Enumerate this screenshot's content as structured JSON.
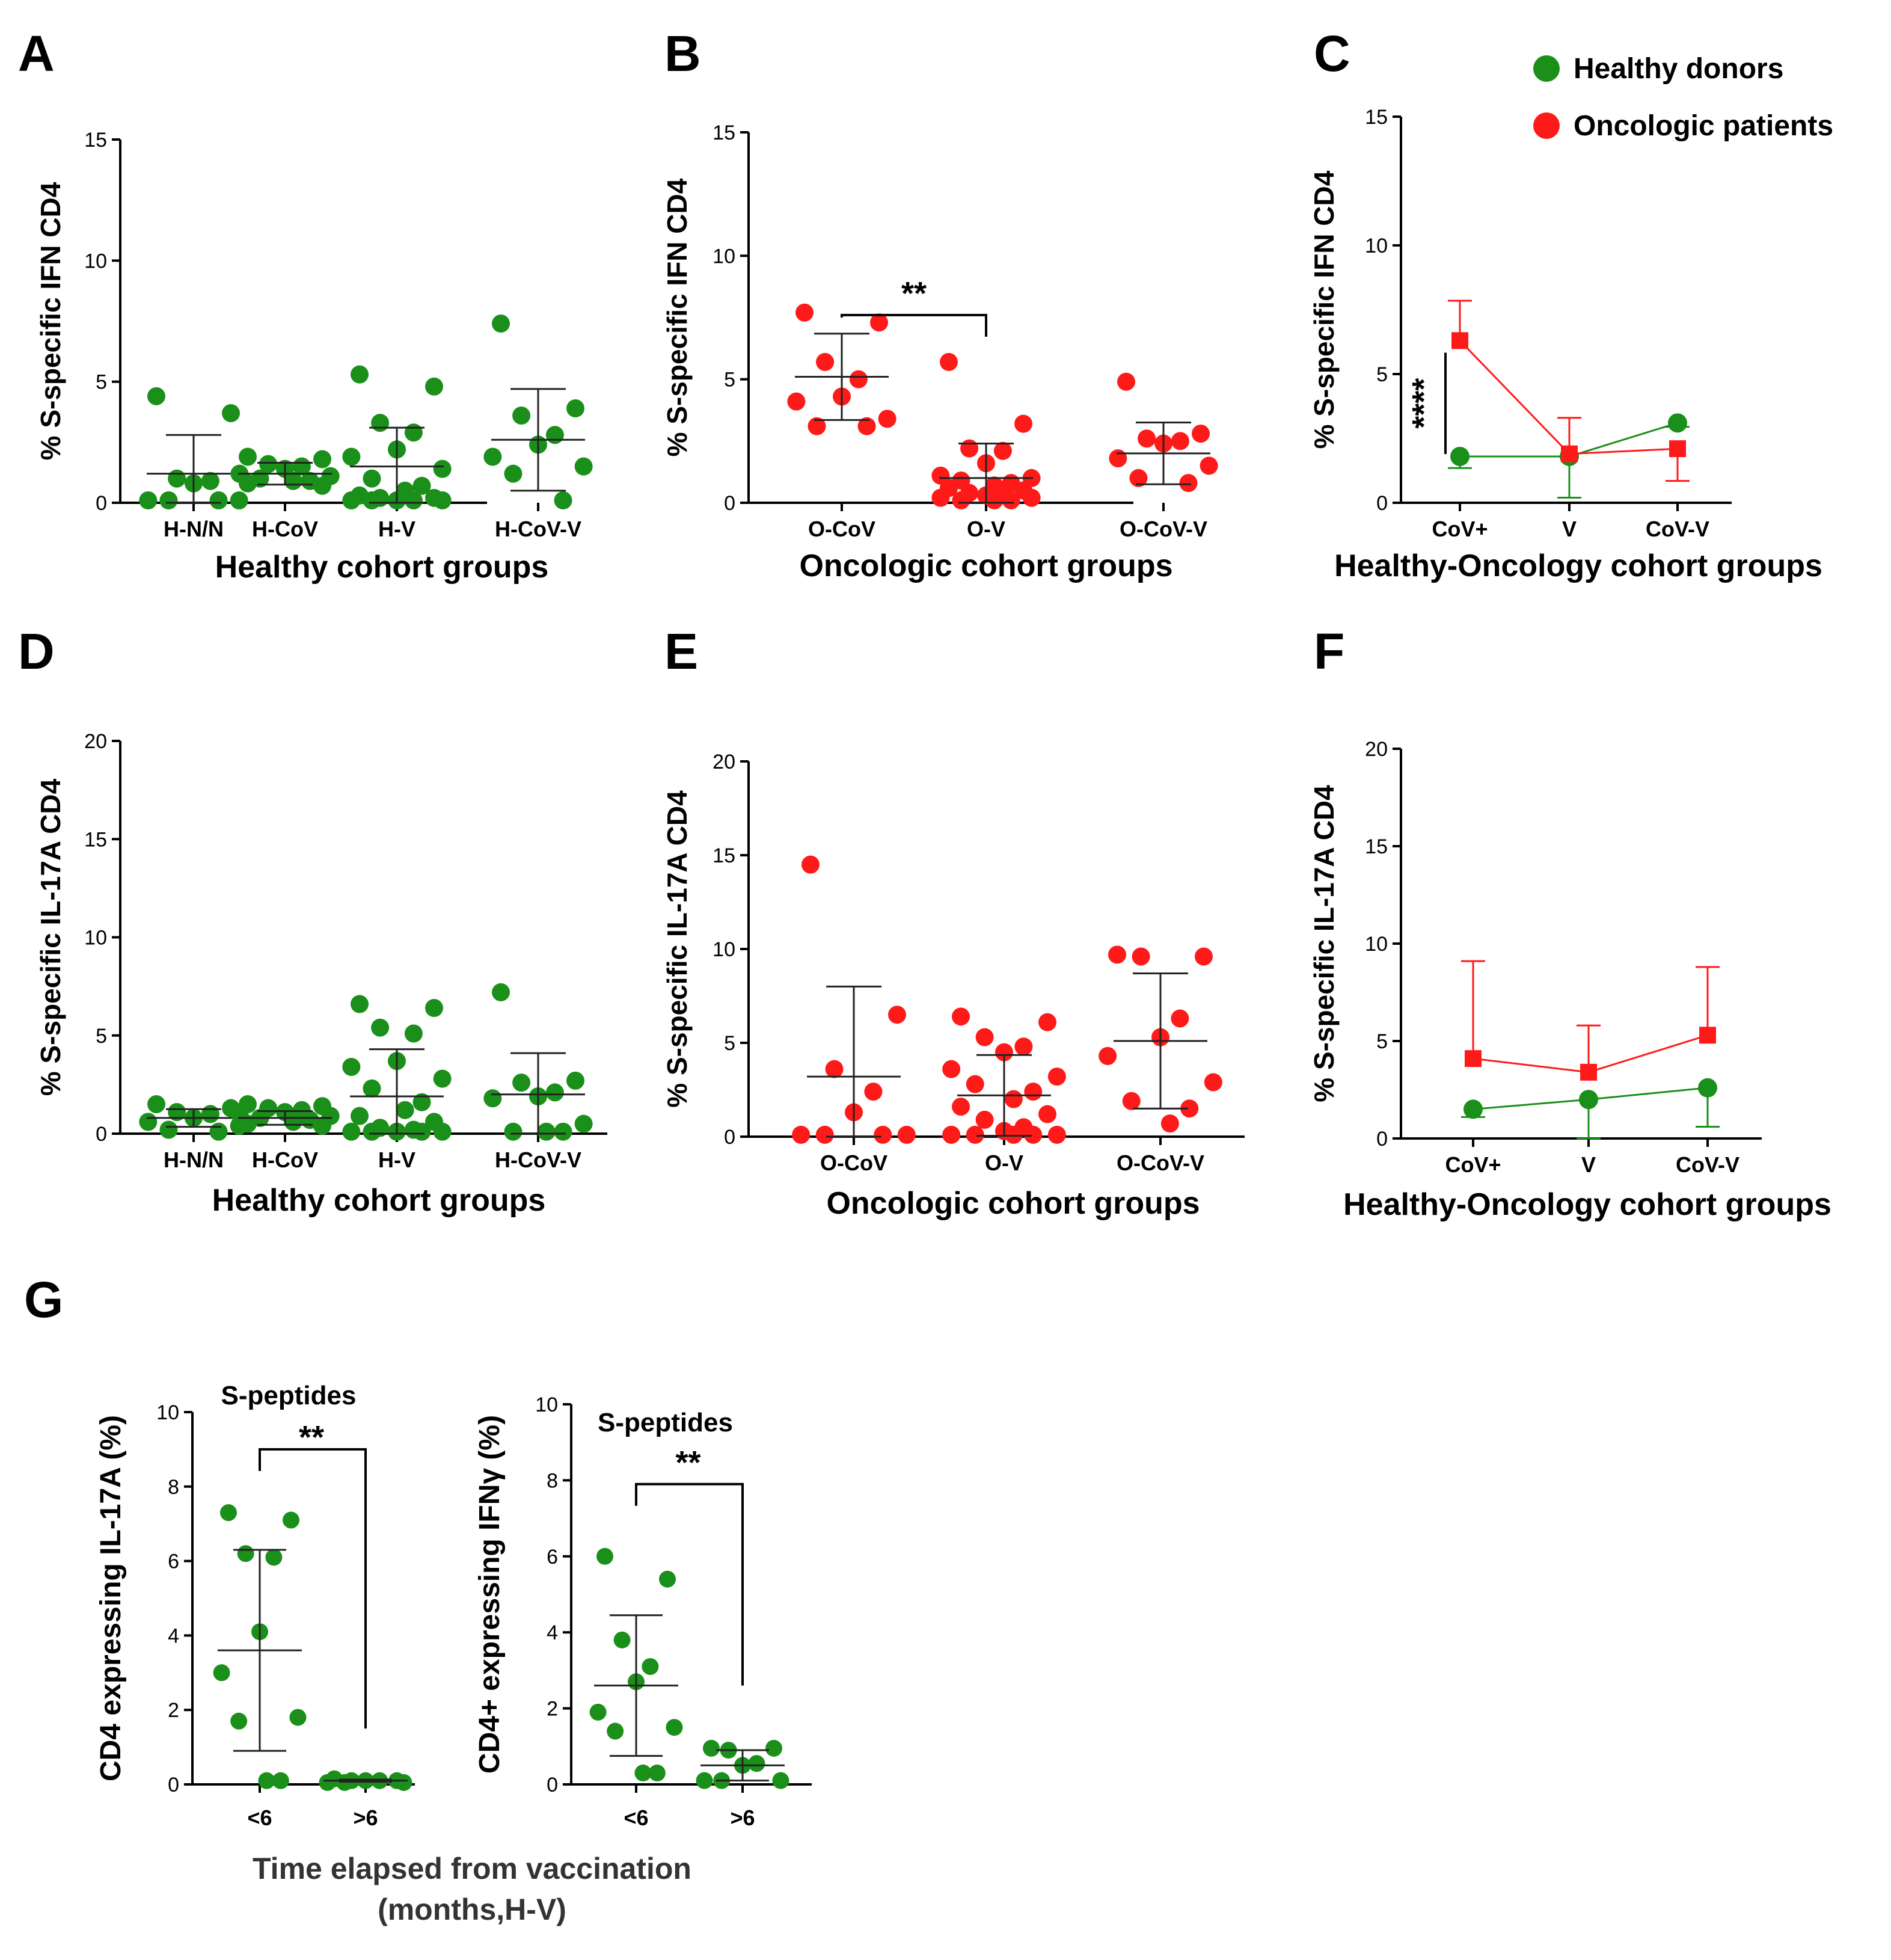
{
  "legend": {
    "healthy_label": "Healthy donors",
    "oncologic_label": "Oncologic patients",
    "healthy_color": "#1a8f1a",
    "oncologic_color": "#ff1a1a"
  },
  "panel_g_xlabel_line1": "Time elapsed from vaccination",
  "panel_g_xlabel_line2": "(months,H-V)",
  "chart_data": [
    {
      "id": "A",
      "type": "scatter",
      "letter": "A",
      "ylabel": "% S-specific IFN CD4",
      "xlabel": "Healthy cohort groups",
      "ylim": [
        0,
        15
      ],
      "yticks": [
        0,
        5,
        10,
        15
      ],
      "categories": [
        "H-N/N",
        "H-CoV",
        "H-V",
        "H-CoV-V"
      ],
      "color": "#1a8f1a",
      "series": [
        {
          "name": "H-N/N",
          "values": [
            4.4,
            3.7,
            1.0,
            0.9,
            0.8,
            0.1,
            0.1,
            0.1,
            0.1
          ],
          "mean": 1.2,
          "sd": 1.6
        },
        {
          "name": "H-CoV",
          "values": [
            1.9,
            1.8,
            1.6,
            1.5,
            1.4,
            1.2,
            1.1,
            1.0,
            0.9,
            0.9,
            0.8,
            0.7
          ],
          "mean": 1.2,
          "sd": 0.45
        },
        {
          "name": "H-V",
          "values": [
            5.3,
            4.8,
            3.3,
            2.9,
            2.2,
            1.9,
            1.4,
            1.0,
            0.7,
            0.5,
            0.3,
            0.2,
            0.2,
            0.1,
            0.1,
            0.1,
            0.1,
            0.1
          ],
          "mean": 1.5,
          "sd": 1.6
        },
        {
          "name": "H-CoV-V",
          "values": [
            7.4,
            3.9,
            3.6,
            2.8,
            2.4,
            1.9,
            1.5,
            1.2,
            0.1
          ],
          "mean": 2.6,
          "sd": 2.1
        }
      ],
      "significance": []
    },
    {
      "id": "B",
      "type": "scatter",
      "letter": "B",
      "ylabel": "% S-specific IFN CD4",
      "xlabel": "Oncologic cohort groups",
      "ylim": [
        0,
        15
      ],
      "yticks": [
        0,
        5,
        10,
        15
      ],
      "categories": [
        "O-CoV",
        "O-V",
        "O-CoV-V"
      ],
      "color": "#ff1a1a",
      "series": [
        {
          "name": "O-CoV",
          "values": [
            7.7,
            7.3,
            5.7,
            5.0,
            4.3,
            4.1,
            3.4,
            3.1,
            3.1
          ],
          "mean": 5.1,
          "sd": 1.75
        },
        {
          "name": "O-V",
          "values": [
            5.7,
            3.2,
            2.2,
            2.1,
            1.6,
            1.1,
            1.0,
            0.9,
            0.8,
            0.7,
            0.6,
            0.5,
            0.4,
            0.3,
            0.3,
            0.2,
            0.2,
            0.1,
            0.1,
            0.1
          ],
          "mean": 1.0,
          "sd": 1.4
        },
        {
          "name": "O-CoV-V",
          "values": [
            4.9,
            2.8,
            2.6,
            2.5,
            2.4,
            1.8,
            1.5,
            1.0,
            0.8
          ],
          "mean": 2.0,
          "sd": 1.25
        }
      ],
      "significance": [
        {
          "from": 0,
          "to": 1,
          "y": 7.6,
          "label": "**"
        }
      ]
    },
    {
      "id": "C",
      "type": "line",
      "letter": "C",
      "ylabel": "% S-specific IFN CD4",
      "xlabel": "Healthy-Oncology cohort groups",
      "ylim": [
        0,
        15
      ],
      "yticks": [
        0,
        5,
        10,
        15
      ],
      "categories": [
        "CoV+",
        "V",
        "CoV-V"
      ],
      "series": [
        {
          "name": "Healthy donors",
          "color": "#1a8f1a",
          "marker": "circle",
          "values": [
            1.8,
            1.8,
            3.1
          ],
          "err": [
            0.45,
            1.6,
            0.15
          ],
          "err_dir": [
            -1,
            -1,
            -1
          ]
        },
        {
          "name": "Oncologic patients",
          "color": "#ff1a1a",
          "marker": "square",
          "values": [
            6.3,
            1.9,
            2.1
          ],
          "err": [
            1.55,
            1.4,
            1.25
          ],
          "err_dir": [
            1,
            1,
            -1
          ]
        }
      ],
      "significance_label": "****"
    },
    {
      "id": "D",
      "type": "scatter",
      "letter": "D",
      "ylabel": "% S-specific IL-17A CD4",
      "xlabel": "Healthy cohort groups",
      "ylim": [
        0,
        20
      ],
      "yticks": [
        0,
        5,
        10,
        15,
        20
      ],
      "categories": [
        "H-N/N",
        "H-CoV",
        "H-V",
        "H-CoV-V"
      ],
      "color": "#1a8f1a",
      "series": [
        {
          "name": "H-N/N",
          "values": [
            1.5,
            1.3,
            1.1,
            1.0,
            0.8,
            0.6,
            0.4,
            0.2,
            0.1
          ],
          "mean": 0.8,
          "sd": 0.45
        },
        {
          "name": "H-CoV",
          "values": [
            1.5,
            1.4,
            1.3,
            1.2,
            1.1,
            1.0,
            0.9,
            0.8,
            0.7,
            0.6,
            0.5,
            0.4
          ],
          "mean": 0.8,
          "sd": 0.35
        },
        {
          "name": "H-V",
          "values": [
            6.6,
            6.4,
            5.4,
            5.1,
            3.7,
            3.4,
            2.8,
            2.3,
            1.6,
            1.2,
            0.9,
            0.6,
            0.3,
            0.2,
            0.1,
            0.1,
            0.1,
            0.1,
            0.1
          ],
          "mean": 1.9,
          "sd": 2.4
        },
        {
          "name": "H-CoV-V",
          "values": [
            7.2,
            2.7,
            2.6,
            2.1,
            1.9,
            1.8,
            0.5,
            0.1,
            0.1,
            0.1
          ],
          "mean": 2.0,
          "sd": 2.1
        }
      ],
      "significance": []
    },
    {
      "id": "E",
      "type": "scatter",
      "letter": "E",
      "ylabel": "% S-specific IL-17A CD4",
      "xlabel": "Oncologic cohort groups",
      "ylim": [
        0,
        20
      ],
      "yticks": [
        0,
        5,
        10,
        15,
        20
      ],
      "categories": [
        "O-CoV",
        "O-V",
        "O-CoV-V"
      ],
      "color": "#ff1a1a",
      "series": [
        {
          "name": "O-CoV",
          "values": [
            14.5,
            6.5,
            3.6,
            2.4,
            1.3,
            0.1,
            0.1,
            0.1,
            0.1
          ],
          "mean": 3.2,
          "sd": 4.8
        },
        {
          "name": "O-V",
          "values": [
            6.4,
            6.1,
            5.3,
            4.8,
            4.5,
            3.6,
            3.2,
            2.8,
            2.4,
            2.0,
            1.6,
            1.2,
            0.9,
            0.5,
            0.3,
            0.1,
            0.1,
            0.1,
            0.1,
            0.1
          ],
          "mean": 2.2,
          "sd": 2.15
        },
        {
          "name": "O-CoV-V",
          "values": [
            9.7,
            9.6,
            9.6,
            6.3,
            5.3,
            4.3,
            2.9,
            1.9,
            1.5,
            0.7
          ],
          "mean": 5.1,
          "sd": 3.6
        }
      ],
      "significance": []
    },
    {
      "id": "F",
      "type": "line",
      "letter": "F",
      "ylabel": "% S-specific IL-17A CD4",
      "xlabel": "Healthy-Oncology cohort groups",
      "ylim": [
        0,
        20
      ],
      "yticks": [
        0,
        5,
        10,
        15,
        20
      ],
      "categories": [
        "CoV+",
        "V",
        "CoV-V"
      ],
      "series": [
        {
          "name": "Healthy donors",
          "color": "#1a8f1a",
          "marker": "circle",
          "values": [
            1.5,
            2.0,
            2.6
          ],
          "err": [
            0.4,
            2.0,
            2.0
          ],
          "err_dir": [
            -1,
            -1,
            -1
          ]
        },
        {
          "name": "Oncologic patients",
          "color": "#ff1a1a",
          "marker": "square",
          "values": [
            4.1,
            3.4,
            5.3
          ],
          "err": [
            5.0,
            2.4,
            3.5
          ],
          "err_dir": [
            1,
            1,
            1
          ]
        }
      ],
      "significance_label": ""
    },
    {
      "id": "G1",
      "type": "scatter",
      "letter": "G",
      "ylabel": "CD4 expressing IL-17A (%)",
      "xlabel": "",
      "subtitle": "S-peptides",
      "ylim": [
        0,
        10
      ],
      "yticks": [
        0,
        2,
        4,
        6,
        8,
        10
      ],
      "categories": [
        "<6",
        ">6"
      ],
      "color": "#1a8f1a",
      "series": [
        {
          "name": "<6",
          "values": [
            7.3,
            7.1,
            6.2,
            6.1,
            4.1,
            3.0,
            1.8,
            1.7,
            0.1,
            0.1
          ],
          "mean": 3.6,
          "sd": 2.7
        },
        {
          "name": ">6",
          "values": [
            0.15,
            0.1,
            0.1,
            0.1,
            0.1,
            0.05,
            0.05,
            0.05
          ],
          "mean": 0.1,
          "sd": 0.03
        }
      ],
      "significance": [
        {
          "from": 0,
          "to": 1,
          "y": 9.0,
          "label": "**",
          "drop_right": 1.5
        }
      ]
    },
    {
      "id": "G2",
      "type": "scatter",
      "letter": "",
      "ylabel": "CD4+ expressing IFNγ (%)",
      "xlabel": "",
      "subtitle": "S-peptides",
      "ylim": [
        0,
        10
      ],
      "yticks": [
        0,
        2,
        4,
        6,
        8,
        10
      ],
      "categories": [
        "<6",
        ">6"
      ],
      "color": "#1a8f1a",
      "series": [
        {
          "name": "<6",
          "values": [
            6.0,
            5.4,
            3.8,
            3.1,
            2.7,
            1.9,
            1.5,
            1.4,
            0.3,
            0.3
          ],
          "mean": 2.6,
          "sd": 1.85
        },
        {
          "name": ">6",
          "values": [
            0.95,
            0.95,
            0.9,
            0.55,
            0.5,
            0.1,
            0.1,
            0.1
          ],
          "mean": 0.5,
          "sd": 0.4
        }
      ],
      "significance": [
        {
          "from": 0,
          "to": 1,
          "y": 7.9,
          "label": "**",
          "drop_right": 2.6
        }
      ]
    }
  ]
}
